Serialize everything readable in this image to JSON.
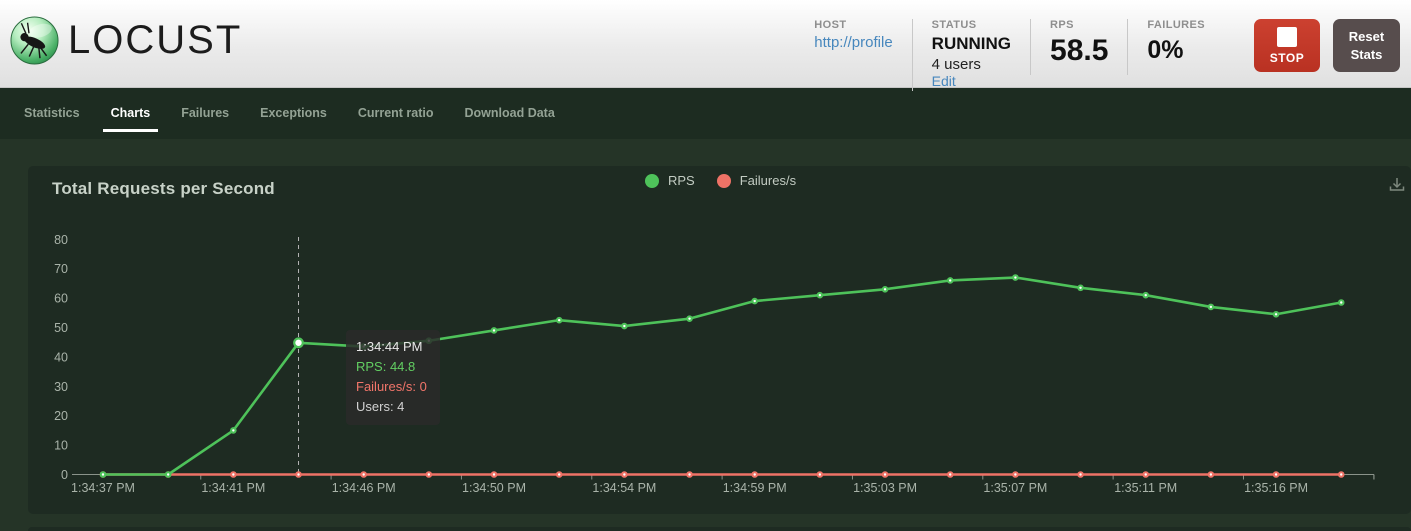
{
  "header": {
    "logo_text": "LOCUST",
    "host": {
      "label": "HOST",
      "value": "http://profile"
    },
    "status": {
      "label": "STATUS",
      "value": "RUNNING",
      "users": "4 users",
      "edit_link": "Edit"
    },
    "rps": {
      "label": "RPS",
      "value": "58.5"
    },
    "failures": {
      "label": "FAILURES",
      "value": "0%"
    },
    "stop_button_label": "STOP",
    "reset_button_label": "Reset Stats"
  },
  "nav": {
    "tabs": [
      {
        "label": "Statistics",
        "active": false
      },
      {
        "label": "Charts",
        "active": true
      },
      {
        "label": "Failures",
        "active": false
      },
      {
        "label": "Exceptions",
        "active": false
      },
      {
        "label": "Current ratio",
        "active": false
      },
      {
        "label": "Download Data",
        "active": false
      }
    ]
  },
  "chart": {
    "title": "Total Requests per Second",
    "legend": [
      {
        "label": "RPS",
        "color": "#4ec25a"
      },
      {
        "label": "Failures/s",
        "color": "#ee7266"
      }
    ],
    "tooltip": {
      "time": "1:34:44 PM",
      "rps": "RPS: 44.8",
      "failures": "Failures/s: 0",
      "users": "Users: 4"
    },
    "colors": {
      "axis_text": "#a9b3a9",
      "axis_line": "#8a938a",
      "hover_line": "#b4b4b4"
    }
  },
  "chart_data": {
    "type": "line",
    "title": "Total Requests per Second",
    "x": [
      "1:34:37 PM",
      "1:34:39 PM",
      "1:34:41 PM",
      "1:34:44 PM",
      "1:34:46 PM",
      "1:34:48 PM",
      "1:34:50 PM",
      "1:34:52 PM",
      "1:34:54 PM",
      "1:34:57 PM",
      "1:34:59 PM",
      "1:35:01 PM",
      "1:35:03 PM",
      "1:35:05 PM",
      "1:35:07 PM",
      "1:35:09 PM",
      "1:35:11 PM",
      "1:35:13 PM",
      "1:35:16 PM",
      "1:35:18 PM"
    ],
    "x_label_step": 2,
    "shown_x_labels": [
      "1:34:37 PM",
      "1:34:41 PM",
      "1:34:46 PM",
      "1:34:50 PM",
      "1:34:54 PM",
      "1:34:59 PM",
      "1:35:03 PM",
      "1:35:07 PM",
      "1:35:11 PM",
      "1:35:16 PM"
    ],
    "series": [
      {
        "name": "Failures/s",
        "color": "#ee7266",
        "values": [
          0,
          0,
          0,
          0,
          0,
          0,
          0,
          0,
          0,
          0,
          0,
          0,
          0,
          0,
          0,
          0,
          0,
          0,
          0,
          0
        ]
      },
      {
        "name": "RPS",
        "color": "#4ec25a",
        "values": [
          0,
          0,
          15,
          44.8,
          43.5,
          45.5,
          49,
          52.5,
          50.5,
          53,
          59,
          61,
          63,
          66,
          67,
          63.5,
          61,
          57,
          54.5,
          58.5
        ]
      }
    ],
    "ylim": [
      0,
      80
    ],
    "y_ticks": [
      0,
      10,
      20,
      30,
      40,
      50,
      60,
      70,
      80
    ],
    "grid": false,
    "legend_position": "top-center",
    "hover_point_index": 3,
    "hover_series": "RPS"
  }
}
